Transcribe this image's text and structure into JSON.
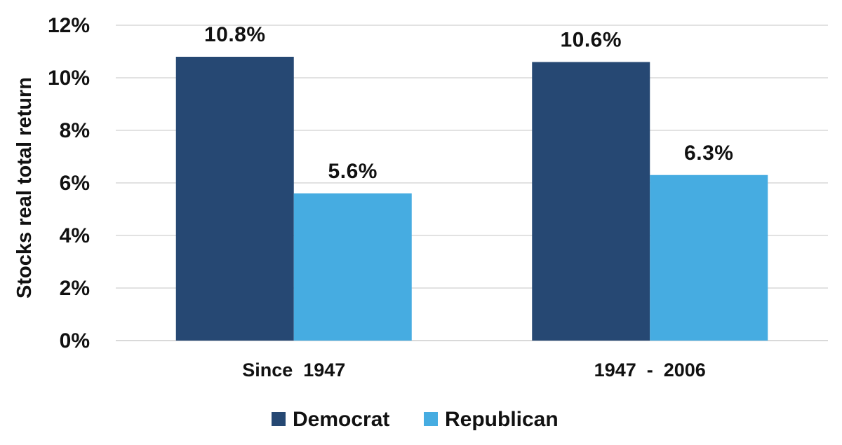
{
  "chart_data": {
    "type": "bar",
    "categories": [
      "Since  1947",
      "1947  -  2006"
    ],
    "series": [
      {
        "name": "Democrat",
        "values": [
          10.8,
          10.6
        ],
        "labels": [
          "10.8%",
          "10.6%"
        ],
        "color": "#264873"
      },
      {
        "name": "Republican",
        "values": [
          5.6,
          6.3
        ],
        "labels": [
          "5.6%",
          "6.3%"
        ],
        "color": "#46ACE1"
      }
    ],
    "title": "",
    "xlabel": "",
    "ylabel": "Stocks real total return",
    "ylim": [
      0,
      12
    ],
    "yticks": [
      0,
      2,
      4,
      6,
      8,
      10,
      12
    ],
    "ytick_labels": [
      "0%",
      "2%",
      "4%",
      "6%",
      "8%",
      "10%",
      "12%"
    ],
    "grid": true,
    "gridline_color": "#d9d9d9",
    "legend_position": "bottom"
  }
}
